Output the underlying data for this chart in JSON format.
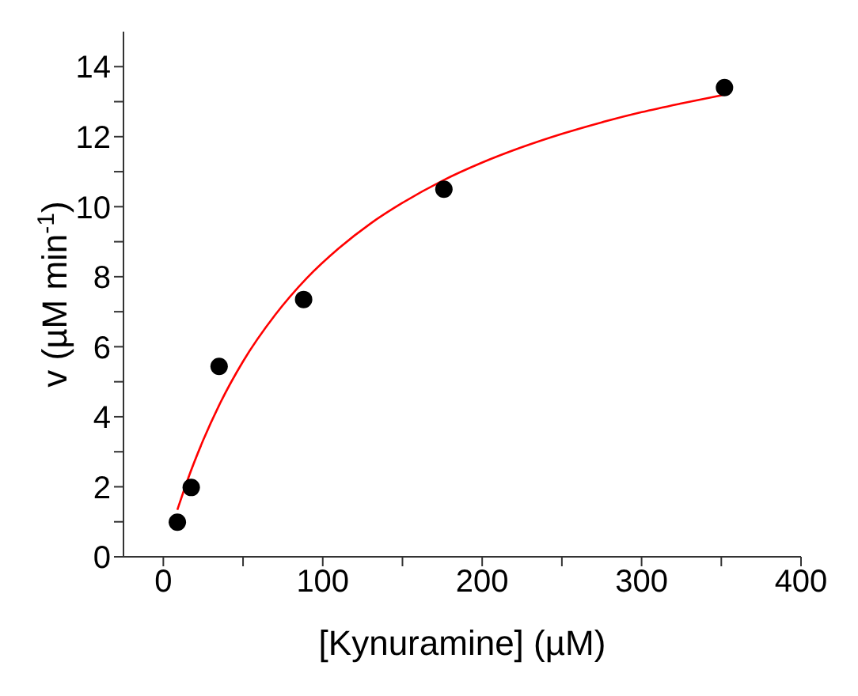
{
  "chart_data": {
    "type": "scatter",
    "xlabel": "[Kynuramine] (µM)",
    "ylabel": "v (µM min$^{-1}$)",
    "marker": "circle",
    "grid": false,
    "xlim": [
      -25,
      400
    ],
    "xticks": [
      0,
      {
        "value": 50,
        "label": null
      },
      100,
      {
        "value": 150,
        "label": null
      },
      200,
      {
        "value": 250,
        "label": null
      },
      300,
      {
        "value": 350,
        "label": null
      },
      400
    ],
    "ylim": [
      0,
      15
    ],
    "yticks": [
      0,
      {
        "value": 1,
        "label": null
      },
      2,
      {
        "value": 3,
        "label": null
      },
      4,
      {
        "value": 5,
        "label": null
      },
      6,
      {
        "value": 7,
        "label": null
      },
      8,
      {
        "value": 9,
        "label": null
      },
      10,
      {
        "value": 11,
        "label": null
      },
      12,
      {
        "value": 13,
        "label": null
      },
      14
    ],
    "series": [
      {
        "color": "#000000",
        "x": [
          8.8,
          17.5,
          35,
          88,
          176,
          352
        ],
        "values": [
          0.99,
          1.98,
          5.44,
          7.35,
          10.5,
          13.4
        ]
      },
      {
        "type": "line",
        "color": "#ff0000",
        "marker": "none",
        "x": [
          8.8,
          15,
          25,
          35,
          50,
          70,
          90,
          110,
          130,
          150,
          175,
          200,
          225,
          250,
          275,
          300,
          325,
          352
        ],
        "values": [
          1.34,
          2.17,
          3.33,
          4.33,
          5.58,
          6.9,
          7.96,
          8.81,
          9.52,
          10.11,
          10.74,
          11.26,
          11.7,
          12.08,
          12.41,
          12.7,
          12.95,
          13.2
        ]
      }
    ]
  }
}
